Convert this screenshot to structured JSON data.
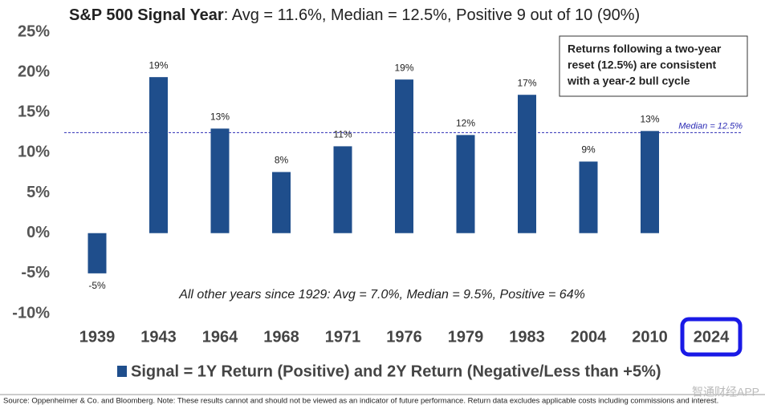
{
  "chart_data": {
    "type": "bar",
    "title": "S&P 500 Signal Year",
    "subtitle": ": Avg = 11.6%, Median = 12.5%, Positive 9 out of 10 (90%)",
    "categories": [
      "1939",
      "1943",
      "1964",
      "1968",
      "1971",
      "1976",
      "1979",
      "1983",
      "2004",
      "2010",
      "2024"
    ],
    "series": [
      {
        "name": "Signal = 1Y Return (Positive) and 2Y Return (Negative/Less than +5%)",
        "color": "#1f4e8c",
        "values": [
          -5,
          19.4,
          13,
          7.6,
          10.8,
          19.1,
          12.2,
          17.2,
          8.9,
          12.7,
          null
        ],
        "value_labels": [
          "-5%",
          "19%",
          "13%",
          "8%",
          "11%",
          "19%",
          "12%",
          "17%",
          "9%",
          "13%",
          null
        ]
      }
    ],
    "ylim": [
      -10,
      25
    ],
    "yticks": [
      {
        "value": -10,
        "label": "-10%"
      },
      {
        "value": -5,
        "label": "-5%"
      },
      {
        "value": 0,
        "label": "0%"
      },
      {
        "value": 5,
        "label": "5%"
      },
      {
        "value": 10,
        "label": "10%"
      },
      {
        "value": 15,
        "label": "15%"
      },
      {
        "value": 20,
        "label": "20%"
      },
      {
        "value": 25,
        "label": "25%"
      }
    ],
    "grid": false,
    "reference_line": {
      "value": 12.5,
      "label": "Median = 12.5%",
      "color": "#2b2bb5"
    },
    "callout": [
      "Returns following a two-year",
      "reset (12.5%) are consistent",
      "with a year-2 bull cycle"
    ],
    "annotation": "All other years since 1929:  Avg = 7.0%, Median = 9.5%, Positive = 64%",
    "source": "Source: Oppenheimer & Co. and Bloomberg. Note: These results cannot and should not be viewed as an indicator of future performance. Return data excludes applicable costs including commissions and interest.",
    "watermark": "智通财经APP"
  }
}
